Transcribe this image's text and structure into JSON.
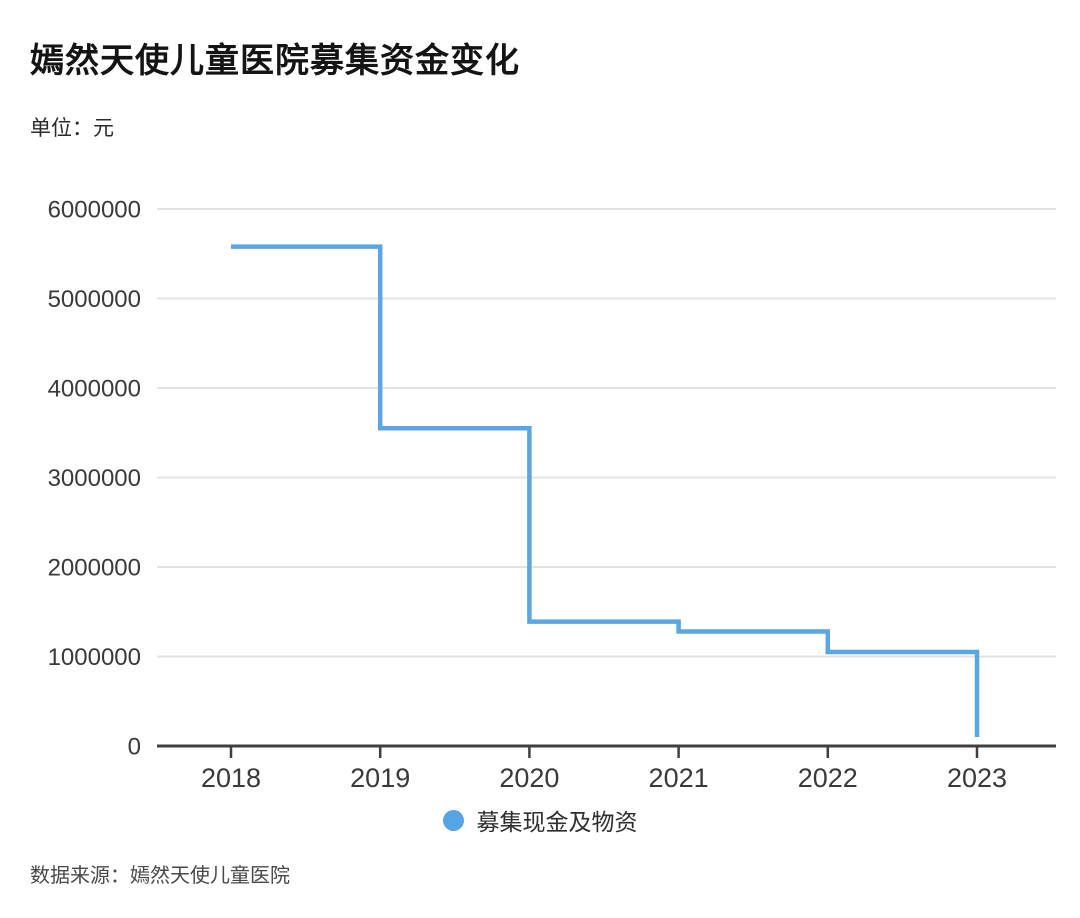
{
  "header": {
    "title": "嫣然天使儿童医院募集资金变化",
    "unit_label": "单位：元"
  },
  "legend": {
    "label": "募集现金及物资",
    "dot_color": "#55A5E6"
  },
  "footer": {
    "source": "数据来源：嫣然天使儿童医院"
  },
  "colors": {
    "line": "#5BA6E3",
    "grid": "#e3e3e3",
    "axis": "#3f3f3f",
    "tick_label": "#3a3a3a"
  },
  "chart_data": {
    "type": "line",
    "line_style": "step-after",
    "title": "嫣然天使儿童医院募集资金变化",
    "xlabel": "",
    "ylabel": "单位：元",
    "x": [
      2018,
      2019,
      2020,
      2021,
      2022,
      2023
    ],
    "x_tick_labels": [
      "2018",
      "2019",
      "2020",
      "2021",
      "2022",
      "2023"
    ],
    "series": [
      {
        "name": "募集现金及物资",
        "values": [
          5580000,
          3550000,
          1390000,
          1280000,
          1050000,
          100000
        ]
      }
    ],
    "ylim": [
      0,
      6000000
    ],
    "y_tick_step": 1000000,
    "y_tick_labels": [
      "0",
      "1000000",
      "2000000",
      "3000000",
      "4000000",
      "5000000",
      "6000000"
    ],
    "grid": "horizontal",
    "legend_position": "bottom-center"
  }
}
